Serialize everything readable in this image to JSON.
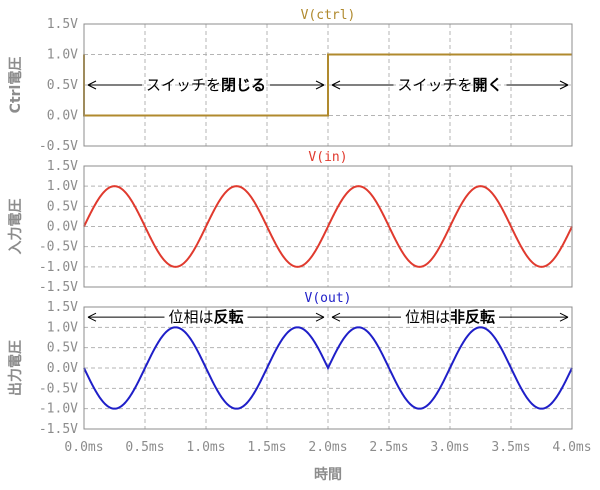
{
  "chart_data": [
    {
      "type": "line",
      "title": "V(ctrl)",
      "ylabel": "Ctrl電圧",
      "ylim": [
        -0.5,
        1.5
      ],
      "yticks": [
        "1.5V",
        "1.0V",
        "0.5V",
        "0.0V",
        "-0.5V"
      ],
      "xlim": [
        0,
        4
      ],
      "grid": true,
      "color": "#b08a2e",
      "series": [
        {
          "x": [
            0,
            0,
            2,
            2,
            4
          ],
          "y": [
            1.0,
            0.0,
            0.0,
            1.0,
            1.0
          ]
        }
      ],
      "annotations": [
        {
          "text_normal": "スイッチを",
          "text_bold": "閉じる",
          "x_from": 0,
          "x_to": 2,
          "y": 0.5
        },
        {
          "text_normal": "スイッチを",
          "text_bold": "開く",
          "x_from": 2,
          "x_to": 4,
          "y": 0.5
        }
      ]
    },
    {
      "type": "line",
      "title": "V(in)",
      "ylabel": "入力電圧",
      "ylim": [
        -1.5,
        1.5
      ],
      "yticks": [
        "1.5V",
        "1.0V",
        "0.5V",
        "0.0V",
        "-0.5V",
        "-1.0V",
        "-1.5V"
      ],
      "xlim": [
        0,
        4
      ],
      "grid": true,
      "color": "#e03a2e",
      "series": [
        {
          "function": "sin",
          "amplitude": 1.0,
          "period_ms": 1.0
        }
      ]
    },
    {
      "type": "line",
      "title": "V(out)",
      "ylabel": "出力電圧",
      "ylim": [
        -1.5,
        1.5
      ],
      "yticks": [
        "1.5V",
        "1.0V",
        "0.5V",
        "0.0V",
        "-0.5V",
        "-1.0V",
        "-1.5V"
      ],
      "xlim": [
        0,
        4
      ],
      "xticks": [
        "0.0ms",
        "0.5ms",
        "1.0ms",
        "1.5ms",
        "2.0ms",
        "2.5ms",
        "3.0ms",
        "3.5ms",
        "4.0ms"
      ],
      "xlabel": "時間",
      "grid": true,
      "color": "#1f1fc8",
      "series": [
        {
          "function": "sin",
          "amplitude": 1.0,
          "period_ms": 1.0,
          "inverted_until_ms": 2.0
        }
      ],
      "annotations": [
        {
          "text_normal": "位相は",
          "text_bold": "反転",
          "x_from": 0,
          "x_to": 2,
          "y": 1.25
        },
        {
          "text_normal": "位相は",
          "text_bold": "非反転",
          "x_from": 2,
          "x_to": 4,
          "y": 1.25
        }
      ]
    }
  ]
}
